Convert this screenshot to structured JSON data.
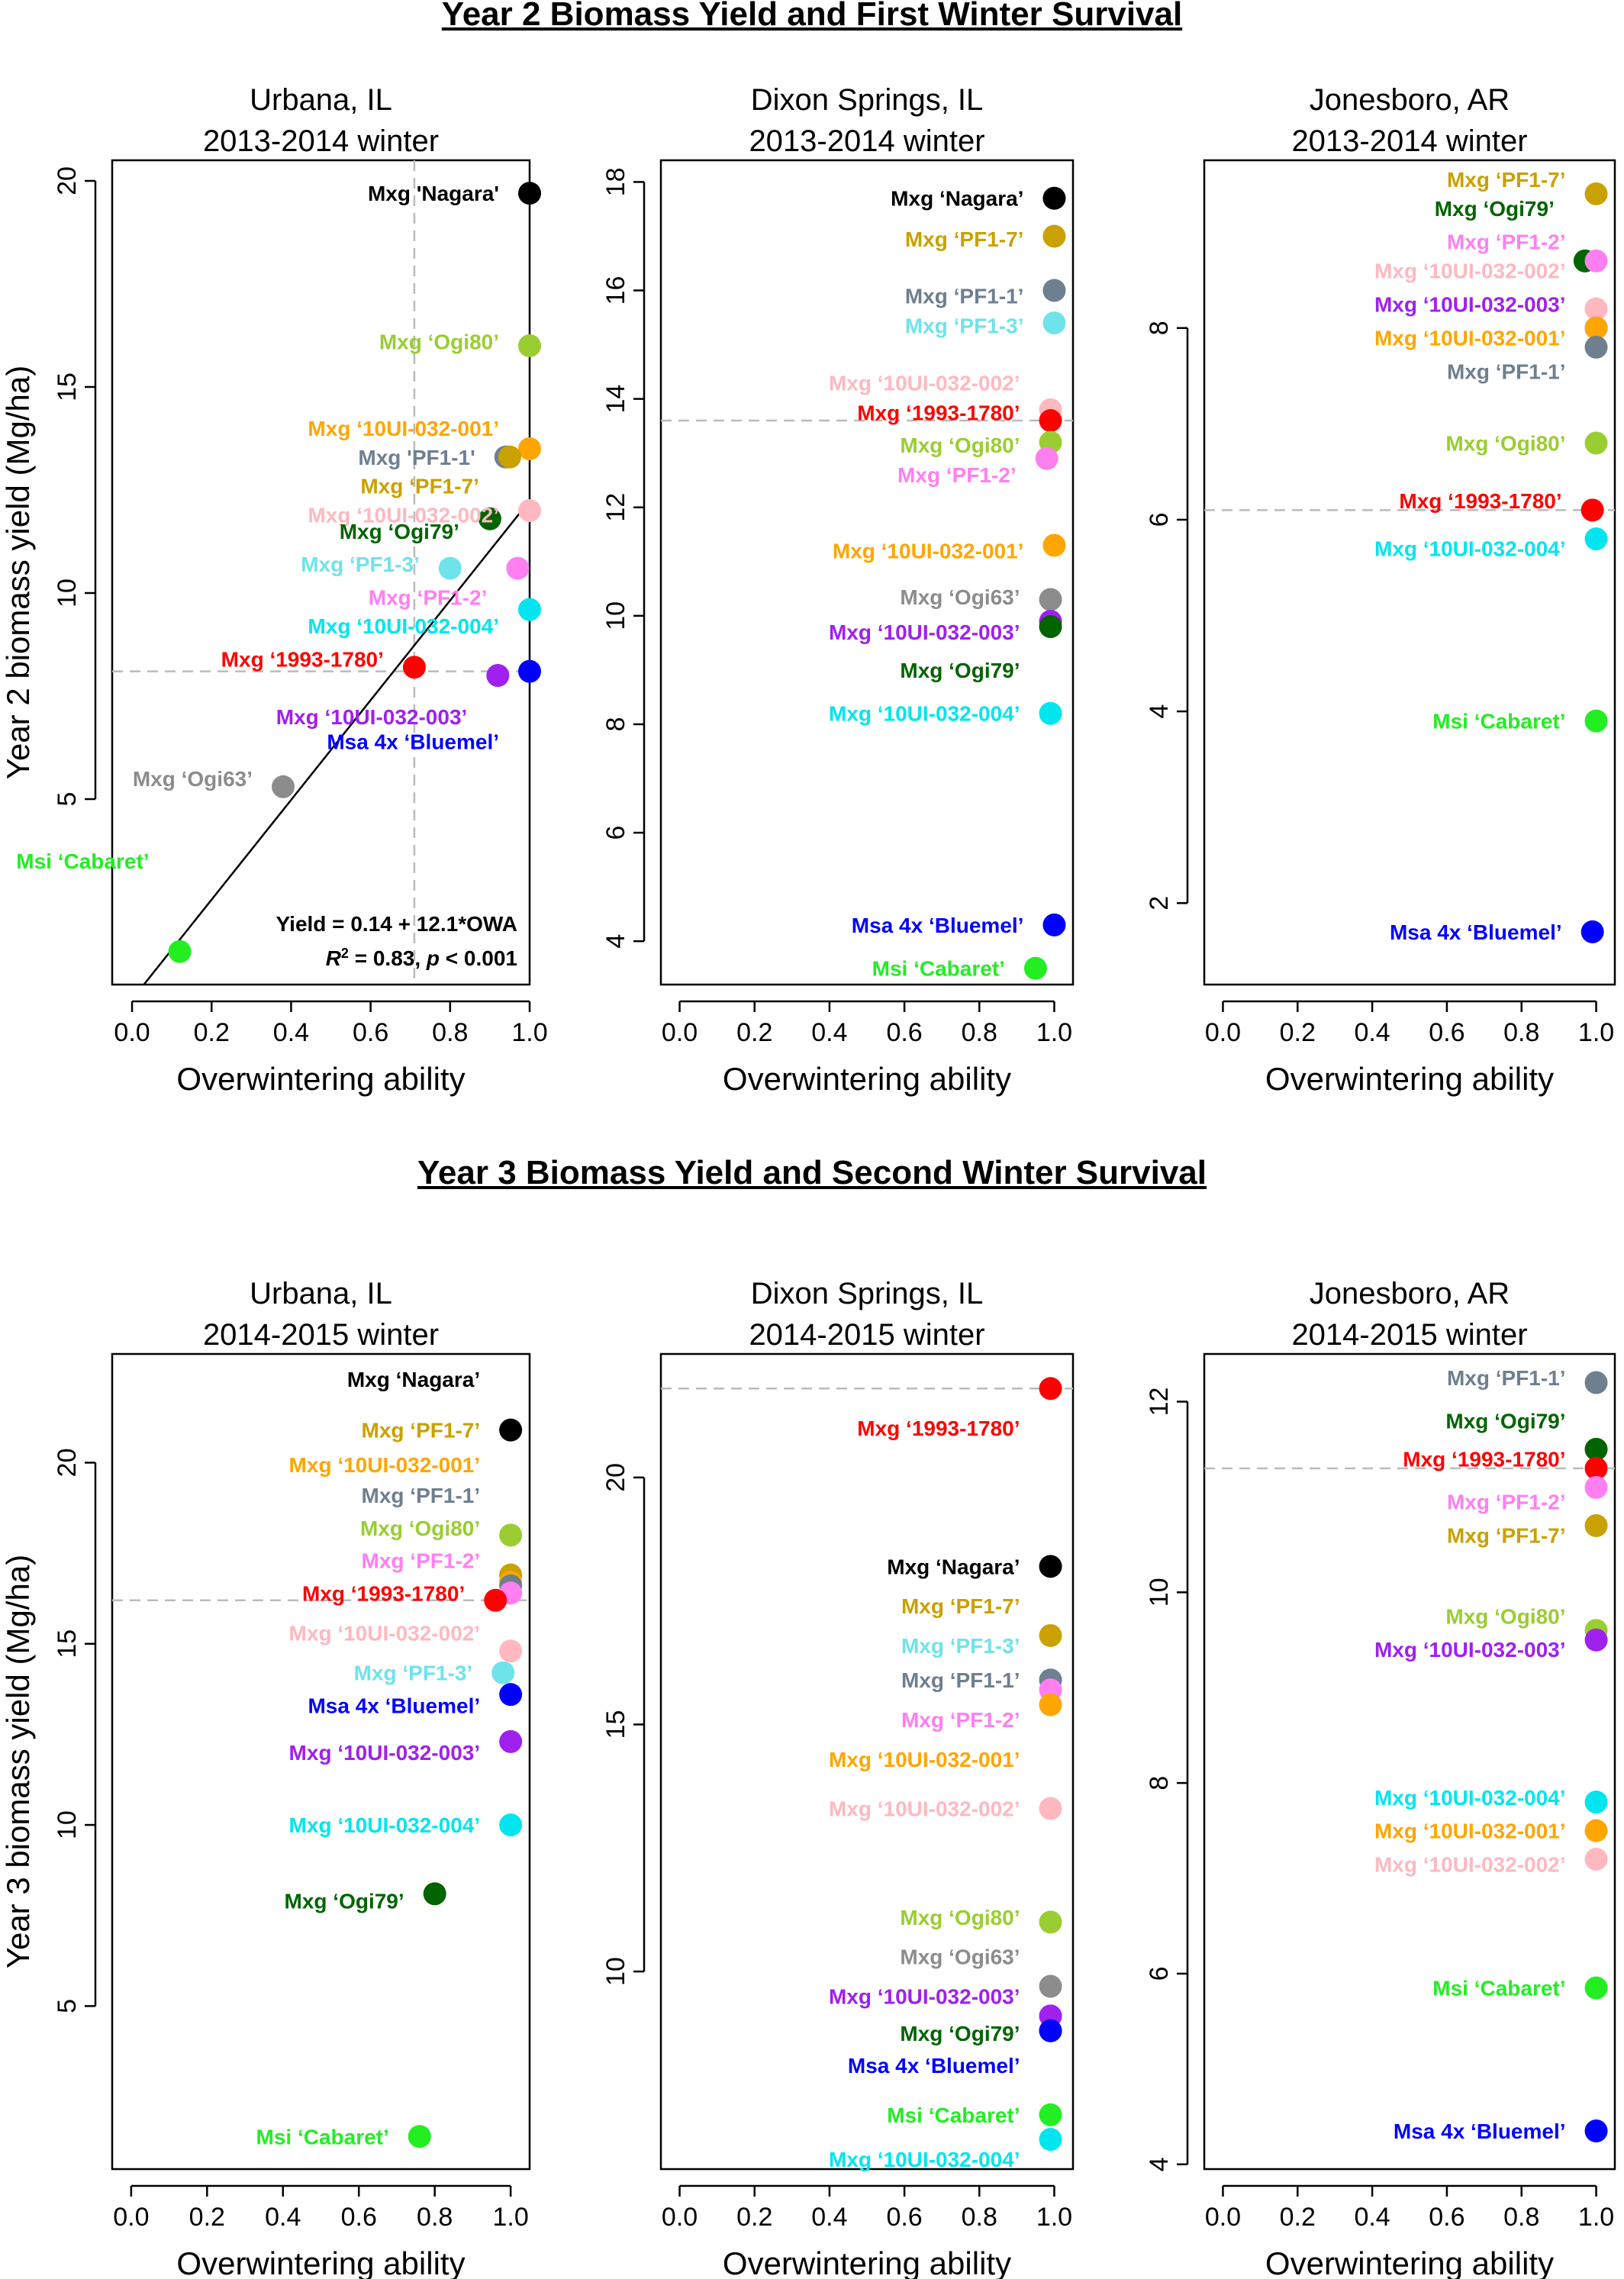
{
  "figure": {
    "sections": [
      {
        "title": "Year 2 Biomass Yield and First Winter Survival"
      },
      {
        "title": "Year 3 Biomass Yield and Second Winter Survival"
      }
    ]
  },
  "colors": {
    "nagara": "#000000",
    "pf17": "#c9a100",
    "pf11": "#6e7f90",
    "pf13": "#6fe3ea",
    "u002": "#ffb8c0",
    "r1993": "#ff0000",
    "ogi80": "#9acd32",
    "pf12": "#ff7ff0",
    "u001": "#ffa500",
    "ogi63": "#8c8c8c",
    "u003": "#a020f0",
    "ogi79": "#006400",
    "u004": "#00e5ee",
    "bluemel": "#0000ff",
    "cabaret": "#22ee22",
    "ref": "#bbbbbb"
  },
  "chart_data": [
    {
      "type": "scatter",
      "section": 0,
      "site": "Urbana, IL",
      "winter": "2013-2014 winter",
      "xlabel": "Overwintering ability",
      "ylabel": "Year 2 biomass yield (Mg/ha)",
      "xlim": [
        -0.05,
        1.0
      ],
      "ylim": [
        0.5,
        20.5
      ],
      "xticks": [
        "0.0",
        "0.2",
        "0.4",
        "0.6",
        "0.8",
        "1.0"
      ],
      "xtick_values": [
        0,
        0.2,
        0.4,
        0.6,
        0.8,
        1.0
      ],
      "yticks": [
        "5",
        "10",
        "15",
        "20"
      ],
      "ytick_values": [
        5,
        10,
        15,
        20
      ],
      "ref_h": 8.1,
      "ref_v": 0.71,
      "fit": {
        "intercept": 0.14,
        "slope": 12.1,
        "line1": "Yield = 0.14 + 12.1*OWA",
        "r2_label": "R",
        "r2_value": " = 0.83,  ",
        "p_label": "p",
        "p_value": " < 0.001"
      },
      "points": [
        {
          "label": "Mxg 'Nagara'",
          "color": "nagara",
          "x": 1.0,
          "y": 19.7,
          "ly": 19.7
        },
        {
          "label": "Mxg ‘Ogi80’",
          "color": "ogi80",
          "x": 1.0,
          "y": 16.0,
          "ly": 16.1
        },
        {
          "label": "Mxg ‘10UI-032-001’",
          "color": "u001",
          "x": 1.0,
          "y": 13.5,
          "ly": 14.0
        },
        {
          "label": "Mxg 'PF1-1'",
          "color": "pf11",
          "x": 0.94,
          "y": 13.3,
          "ly": 13.3
        },
        {
          "label": "Mxg ‘PF1-7’",
          "color": "pf17",
          "x": 0.95,
          "y": 13.3,
          "ly": 12.6
        },
        {
          "label": "Mxg ‘10UI-032-002’",
          "color": "u002",
          "x": 1.0,
          "y": 12.0,
          "ly": 11.9
        },
        {
          "label": "Mxg ‘Ogi79’",
          "color": "ogi79",
          "x": 0.9,
          "y": 11.8,
          "ly": 11.5
        },
        {
          "label": "Mxg ‘PF1-3’",
          "color": "pf13",
          "x": 0.8,
          "y": 10.6,
          "ly": 10.7
        },
        {
          "label": "Mxg ‘PF1-2’",
          "color": "pf12",
          "x": 0.97,
          "y": 10.6,
          "ly": 9.9
        },
        {
          "label": "Mxg ‘10UI-032-004’",
          "color": "u004",
          "x": 1.0,
          "y": 9.6,
          "ly": 9.2
        },
        {
          "label": "Mxg ‘1993-1780’",
          "color": "r1993",
          "x": 0.71,
          "y": 8.2,
          "ly": 8.4
        },
        {
          "label": "Mxg ‘10UI-032-003’",
          "color": "u003",
          "x": 0.92,
          "y": 8.0,
          "ly": 7.0
        },
        {
          "label": "Msa 4x ‘Bluemel’",
          "color": "bluemel",
          "x": 1.0,
          "y": 8.1,
          "ly": 6.4
        },
        {
          "label": "Mxg ‘Ogi63’",
          "color": "ogi63",
          "x": 0.38,
          "y": 5.3,
          "ly": 5.5
        },
        {
          "label": "Msi ‘Cabaret’",
          "color": "cabaret",
          "x": 0.12,
          "y": 1.3,
          "ly": 3.5
        }
      ]
    },
    {
      "type": "scatter",
      "section": 0,
      "site": "Dixon Springs, IL",
      "winter": "2013-2014 winter",
      "xlabel": "Overwintering ability",
      "ylabel": "",
      "xlim": [
        -0.05,
        1.05
      ],
      "ylim": [
        3.2,
        18.4
      ],
      "xticks": [
        "0.0",
        "0.2",
        "0.4",
        "0.6",
        "0.8",
        "1.0"
      ],
      "xtick_values": [
        0,
        0.2,
        0.4,
        0.6,
        0.8,
        1.0
      ],
      "yticks": [
        "4",
        "6",
        "8",
        "10",
        "12",
        "14",
        "16",
        "18"
      ],
      "ytick_values": [
        4,
        6,
        8,
        10,
        12,
        14,
        16,
        18
      ],
      "ref_h": 13.6,
      "points": [
        {
          "label": "Mxg ‘Nagara’",
          "color": "nagara",
          "x": 1.0,
          "y": 17.7,
          "ly": 17.7
        },
        {
          "label": "Mxg ‘PF1-7’",
          "color": "pf17",
          "x": 1.0,
          "y": 17.0,
          "ly": 16.95
        },
        {
          "label": "Mxg ‘PF1-1’",
          "color": "pf11",
          "x": 1.0,
          "y": 16.0,
          "ly": 15.9
        },
        {
          "label": "Mxg ‘PF1-3’",
          "color": "pf13",
          "x": 1.0,
          "y": 15.4,
          "ly": 15.35
        },
        {
          "label": "Mxg ‘10UI-032-002’",
          "color": "u002",
          "x": 0.99,
          "y": 13.8,
          "ly": 14.3
        },
        {
          "label": "Mxg ‘1993-1780’",
          "color": "r1993",
          "x": 0.99,
          "y": 13.6,
          "ly": 13.75
        },
        {
          "label": "Mxg ‘Ogi80’",
          "color": "ogi80",
          "x": 0.99,
          "y": 13.2,
          "ly": 13.15
        },
        {
          "label": "Mxg ‘PF1-2’",
          "color": "pf12",
          "x": 0.98,
          "y": 12.9,
          "ly": 12.6
        },
        {
          "label": "Mxg ‘10UI-032-001’",
          "color": "u001",
          "x": 1.0,
          "y": 11.3,
          "ly": 11.2
        },
        {
          "label": "Mxg ‘Ogi63’",
          "color": "ogi63",
          "x": 0.99,
          "y": 10.3,
          "ly": 10.35
        },
        {
          "label": "Mxg ‘10UI-032-003’",
          "color": "u003",
          "x": 0.99,
          "y": 9.9,
          "ly": 9.7
        },
        {
          "label": "Mxg ‘Ogi79’",
          "color": "ogi79",
          "x": 0.99,
          "y": 9.8,
          "ly": 9.0
        },
        {
          "label": "Mxg ‘10UI-032-004’",
          "color": "u004",
          "x": 0.99,
          "y": 8.2,
          "ly": 8.2
        },
        {
          "label": "Msa 4x ‘Bluemel’",
          "color": "bluemel",
          "x": 1.0,
          "y": 4.3,
          "ly": 4.3
        },
        {
          "label": "Msi ‘Cabaret’",
          "color": "cabaret",
          "x": 0.95,
          "y": 3.5,
          "ly": 3.5
        }
      ]
    },
    {
      "type": "scatter",
      "section": 0,
      "site": "Jonesboro, AR",
      "winter": "2013-2014 winter",
      "xlabel": "Overwintering ability",
      "ylabel": "",
      "xlim": [
        -0.05,
        1.05
      ],
      "ylim": [
        1.15,
        9.75
      ],
      "xticks": [
        "0.0",
        "0.2",
        "0.4",
        "0.6",
        "0.8",
        "1.0"
      ],
      "xtick_values": [
        0,
        0.2,
        0.4,
        0.6,
        0.8,
        1.0
      ],
      "yticks": [
        "2",
        "4",
        "6",
        "8"
      ],
      "ytick_values": [
        2,
        4,
        6,
        8
      ],
      "ref_h": 6.1,
      "points": [
        {
          "label": "Mxg ‘PF1-7’",
          "color": "pf17",
          "x": 1.0,
          "y": 9.4,
          "ly": 9.55
        },
        {
          "label": "Mxg ‘Ogi79’",
          "color": "ogi79",
          "x": 0.97,
          "y": 8.7,
          "ly": 9.25
        },
        {
          "label": "Mxg ‘PF1-2’",
          "color": "pf12",
          "x": 1.0,
          "y": 8.7,
          "ly": 8.9
        },
        {
          "label": "Mxg ‘10UI-032-002’",
          "color": "u002",
          "x": 1.0,
          "y": 8.2,
          "ly": 8.6
        },
        {
          "label": "Mxg ‘10UI-032-003’",
          "color": "u003",
          "x": 1.0,
          "y": 8.0,
          "ly": 8.25
        },
        {
          "label": "Mxg ‘10UI-032-001’",
          "color": "u001",
          "x": 1.0,
          "y": 8.0,
          "ly": 7.9
        },
        {
          "label": "Mxg ‘PF1-1’",
          "color": "pf11",
          "x": 1.0,
          "y": 7.8,
          "ly": 7.55
        },
        {
          "label": "Mxg ‘Ogi80’",
          "color": "ogi80",
          "x": 1.0,
          "y": 6.8,
          "ly": 6.8
        },
        {
          "label": "Mxg ‘1993-1780’",
          "color": "r1993",
          "x": 0.99,
          "y": 6.1,
          "ly": 6.2
        },
        {
          "label": "Mxg ‘10UI-032-004’",
          "color": "u004",
          "x": 1.0,
          "y": 5.8,
          "ly": 5.7
        },
        {
          "label": "Msi ‘Cabaret’",
          "color": "cabaret",
          "x": 1.0,
          "y": 3.9,
          "ly": 3.9
        },
        {
          "label": "Msa 4x ‘Bluemel’",
          "color": "bluemel",
          "x": 0.99,
          "y": 1.7,
          "ly": 1.7
        }
      ]
    },
    {
      "type": "scatter",
      "section": 1,
      "site": "Urbana, IL",
      "winter": "2014-2015 winter",
      "xlabel": "Overwintering ability",
      "ylabel": "Year 3 biomass yield (Mg/ha)",
      "xlim": [
        -0.05,
        1.05
      ],
      "ylim": [
        0.5,
        23.0
      ],
      "xticks": [
        "0.0",
        "0.2",
        "0.4",
        "0.6",
        "0.8",
        "1.0"
      ],
      "xtick_values": [
        0,
        0.2,
        0.4,
        0.6,
        0.8,
        1.0
      ],
      "yticks": [
        "5",
        "10",
        "15",
        "20"
      ],
      "ytick_values": [
        5,
        10,
        15,
        20
      ],
      "ref_h": 16.2,
      "points": [
        {
          "label": "Mxg ‘Nagara’",
          "color": "nagara",
          "x": 1.0,
          "y": 20.9,
          "ly": 22.3
        },
        {
          "label": "Mxg ‘PF1-7’",
          "color": "pf17",
          "x": 1.0,
          "y": 16.9,
          "ly": 20.9
        },
        {
          "label": "Mxg ‘10UI-032-001’",
          "color": "u001",
          "x": 1.0,
          "y": 16.7,
          "ly": 19.95
        },
        {
          "label": "Mxg ‘PF1-1’",
          "color": "pf11",
          "x": 1.0,
          "y": 16.6,
          "ly": 19.1
        },
        {
          "label": "Mxg ‘Ogi80’",
          "color": "ogi80",
          "x": 1.0,
          "y": 18.0,
          "ly": 18.2
        },
        {
          "label": "Mxg ‘PF1-2’",
          "color": "pf12",
          "x": 1.0,
          "y": 16.4,
          "ly": 17.3
        },
        {
          "label": "Mxg ‘1993-1780’",
          "color": "r1993",
          "x": 0.96,
          "y": 16.2,
          "ly": 16.4
        },
        {
          "label": "Mxg ‘10UI-032-002’",
          "color": "u002",
          "x": 1.0,
          "y": 14.8,
          "ly": 15.3
        },
        {
          "label": "Mxg ‘PF1-3’",
          "color": "pf13",
          "x": 0.98,
          "y": 14.2,
          "ly": 14.2
        },
        {
          "label": "Msa 4x ‘Bluemel’",
          "color": "bluemel",
          "x": 1.0,
          "y": 13.6,
          "ly": 13.3
        },
        {
          "label": "Mxg ‘10UI-032-003’",
          "color": "u003",
          "x": 1.0,
          "y": 12.3,
          "ly": 12.0
        },
        {
          "label": "Mxg ‘10UI-032-004’",
          "color": "u004",
          "x": 1.0,
          "y": 10.0,
          "ly": 10.0
        },
        {
          "label": "Mxg ‘Ogi79’",
          "color": "ogi79",
          "x": 0.8,
          "y": 8.1,
          "ly": 7.9
        },
        {
          "label": "Msi ‘Cabaret’",
          "color": "cabaret",
          "x": 0.76,
          "y": 1.4,
          "ly": 1.4
        }
      ]
    },
    {
      "type": "scatter",
      "section": 1,
      "site": "Dixon Springs, IL",
      "winter": "2014-2015 winter",
      "xlabel": "Overwintering ability",
      "ylabel": "",
      "xlim": [
        -0.05,
        1.05
      ],
      "ylim": [
        6.0,
        22.5
      ],
      "xticks": [
        "0.0",
        "0.2",
        "0.4",
        "0.6",
        "0.8",
        "1.0"
      ],
      "xtick_values": [
        0,
        0.2,
        0.4,
        0.6,
        0.8,
        1.0
      ],
      "yticks": [
        "10",
        "15",
        "20"
      ],
      "ytick_values": [
        10,
        15,
        20
      ],
      "ref_h": 21.8,
      "points": [
        {
          "label": "Mxg ‘1993-1780’",
          "color": "r1993",
          "x": 0.99,
          "y": 21.8,
          "ly": 21.0
        },
        {
          "label": "Mxg ‘Nagara’",
          "color": "nagara",
          "x": 0.99,
          "y": 18.2,
          "ly": 18.2
        },
        {
          "label": "Mxg ‘PF1-7’",
          "color": "pf17",
          "x": 0.99,
          "y": 16.8,
          "ly": 17.4
        },
        {
          "label": "Mxg ‘PF1-3’",
          "color": "pf13",
          "x": 0.99,
          "y": 15.9,
          "ly": 16.6
        },
        {
          "label": "Mxg ‘PF1-1’",
          "color": "pf11",
          "x": 0.99,
          "y": 15.9,
          "ly": 15.9
        },
        {
          "label": "Mxg ‘PF1-2’",
          "color": "pf12",
          "x": 0.99,
          "y": 15.7,
          "ly": 15.1
        },
        {
          "label": "Mxg ‘10UI-032-001’",
          "color": "u001",
          "x": 0.99,
          "y": 15.4,
          "ly": 14.3
        },
        {
          "label": "Mxg ‘10UI-032-002’",
          "color": "u002",
          "x": 0.99,
          "y": 13.3,
          "ly": 13.3
        },
        {
          "label": "Mxg ‘Ogi80’",
          "color": "ogi80",
          "x": 0.99,
          "y": 11.0,
          "ly": 11.1
        },
        {
          "label": "Mxg ‘Ogi63’",
          "color": "ogi63",
          "x": 0.99,
          "y": 9.7,
          "ly": 10.3
        },
        {
          "label": "Mxg ‘10UI-032-003’",
          "color": "u003",
          "x": 0.99,
          "y": 9.1,
          "ly": 9.5
        },
        {
          "label": "Mxg ‘Ogi79’",
          "color": "ogi79",
          "x": 0.99,
          "y": 8.8,
          "ly": 8.75
        },
        {
          "label": "Msa 4x ‘Bluemel’",
          "color": "bluemel",
          "x": 0.99,
          "y": 8.8,
          "ly": 8.1
        },
        {
          "label": "Msi ‘Cabaret’",
          "color": "cabaret",
          "x": 0.99,
          "y": 7.1,
          "ly": 7.1
        },
        {
          "label": "Mxg ‘10UI-032-004’",
          "color": "u004",
          "x": 0.99,
          "y": 6.6,
          "ly": 6.2
        }
      ]
    },
    {
      "type": "scatter",
      "section": 1,
      "site": "Jonesboro, AR",
      "winter": "2014-2015 winter",
      "xlabel": "Overwintering ability",
      "ylabel": "",
      "xlim": [
        -0.05,
        1.05
      ],
      "ylim": [
        3.95,
        12.5
      ],
      "xticks": [
        "0.0",
        "0.2",
        "0.4",
        "0.6",
        "0.8",
        "1.0"
      ],
      "xtick_values": [
        0,
        0.2,
        0.4,
        0.6,
        0.8,
        1.0
      ],
      "yticks": [
        "4",
        "6",
        "8",
        "10",
        "12"
      ],
      "ytick_values": [
        4,
        6,
        8,
        10,
        12
      ],
      "ref_h": 11.3,
      "points": [
        {
          "label": "Mxg ‘PF1-1’",
          "color": "pf11",
          "x": 1.0,
          "y": 12.2,
          "ly": 12.25
        },
        {
          "label": "Mxg ‘Ogi79’",
          "color": "ogi79",
          "x": 1.0,
          "y": 11.5,
          "ly": 11.8
        },
        {
          "label": "Mxg ‘1993-1780’",
          "color": "r1993",
          "x": 1.0,
          "y": 11.3,
          "ly": 11.4
        },
        {
          "label": "Mxg ‘PF1-2’",
          "color": "pf12",
          "x": 1.0,
          "y": 11.1,
          "ly": 10.95
        },
        {
          "label": "Mxg ‘PF1-7’",
          "color": "pf17",
          "x": 1.0,
          "y": 10.7,
          "ly": 10.6
        },
        {
          "label": "Mxg ‘Ogi80’",
          "color": "ogi80",
          "x": 1.0,
          "y": 9.6,
          "ly": 9.75
        },
        {
          "label": "Mxg ‘10UI-032-003’",
          "color": "u003",
          "x": 1.0,
          "y": 9.5,
          "ly": 9.4
        },
        {
          "label": "Mxg ‘10UI-032-004’",
          "color": "u004",
          "x": 1.0,
          "y": 7.8,
          "ly": 7.85
        },
        {
          "label": "Mxg ‘10UI-032-001’",
          "color": "u001",
          "x": 1.0,
          "y": 7.5,
          "ly": 7.5
        },
        {
          "label": "Mxg ‘10UI-032-002’",
          "color": "u002",
          "x": 1.0,
          "y": 7.2,
          "ly": 7.15
        },
        {
          "label": "Msi ‘Cabaret’",
          "color": "cabaret",
          "x": 1.0,
          "y": 5.85,
          "ly": 5.85
        },
        {
          "label": "Msa 4x ‘Bluemel’",
          "color": "bluemel",
          "x": 1.0,
          "y": 4.35,
          "ly": 4.35
        }
      ]
    }
  ]
}
